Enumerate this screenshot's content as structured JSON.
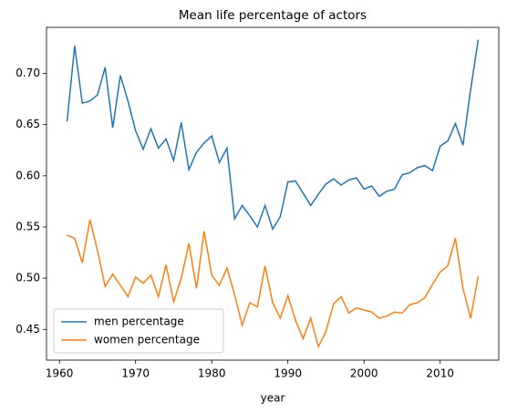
{
  "chart_data": {
    "type": "line",
    "title": "Mean life percentage of actors",
    "xlabel": "year",
    "x": [
      1961,
      1962,
      1963,
      1964,
      1965,
      1966,
      1967,
      1968,
      1969,
      1970,
      1971,
      1972,
      1973,
      1974,
      1975,
      1976,
      1977,
      1978,
      1979,
      1980,
      1981,
      1982,
      1983,
      1984,
      1985,
      1986,
      1987,
      1988,
      1989,
      1990,
      1991,
      1992,
      1993,
      1994,
      1995,
      1996,
      1997,
      1998,
      1999,
      2000,
      2001,
      2002,
      2003,
      2004,
      2005,
      2006,
      2007,
      2008,
      2009,
      2010,
      2011,
      2012,
      2013,
      2014,
      2015
    ],
    "series": [
      {
        "name": "men percentage",
        "color": "#1f77b4",
        "values": [
          0.653,
          0.727,
          0.671,
          0.673,
          0.679,
          0.706,
          0.647,
          0.698,
          0.673,
          0.644,
          0.626,
          0.646,
          0.627,
          0.636,
          0.615,
          0.652,
          0.606,
          0.623,
          0.632,
          0.639,
          0.613,
          0.627,
          0.558,
          0.571,
          0.561,
          0.55,
          0.571,
          0.548,
          0.56,
          0.594,
          0.595,
          0.583,
          0.571,
          0.582,
          0.592,
          0.597,
          0.591,
          0.596,
          0.598,
          0.587,
          0.59,
          0.58,
          0.585,
          0.587,
          0.601,
          0.603,
          0.608,
          0.61,
          0.605,
          0.629,
          0.634,
          0.651,
          0.63,
          0.684,
          0.733
        ]
      },
      {
        "name": "women percentage",
        "color": "#ff7f0e",
        "values": [
          0.542,
          0.539,
          0.515,
          0.557,
          0.527,
          0.492,
          0.504,
          0.493,
          0.482,
          0.501,
          0.495,
          0.503,
          0.482,
          0.513,
          0.477,
          0.5,
          0.534,
          0.49,
          0.546,
          0.503,
          0.493,
          0.51,
          0.484,
          0.454,
          0.476,
          0.472,
          0.512,
          0.476,
          0.461,
          0.483,
          0.459,
          0.441,
          0.461,
          0.433,
          0.448,
          0.475,
          0.482,
          0.466,
          0.471,
          0.469,
          0.467,
          0.461,
          0.463,
          0.467,
          0.466,
          0.474,
          0.476,
          0.481,
          0.494,
          0.506,
          0.512,
          0.539,
          0.49,
          0.461,
          0.502
        ]
      }
    ],
    "xlim": [
      1958.3,
      2017.7
    ],
    "xticks": [
      1960,
      1970,
      1980,
      1990,
      2000,
      2010
    ],
    "ylim": [
      0.42,
      0.745
    ],
    "yticks": [
      0.45,
      {
        "value": 0.5,
        "label": "0.50"
      },
      0.55,
      {
        "value": 0.6,
        "label": "0.60"
      },
      0.65,
      {
        "value": 0.7,
        "label": "0.70"
      }
    ],
    "legend": "lower left",
    "grid": false
  }
}
